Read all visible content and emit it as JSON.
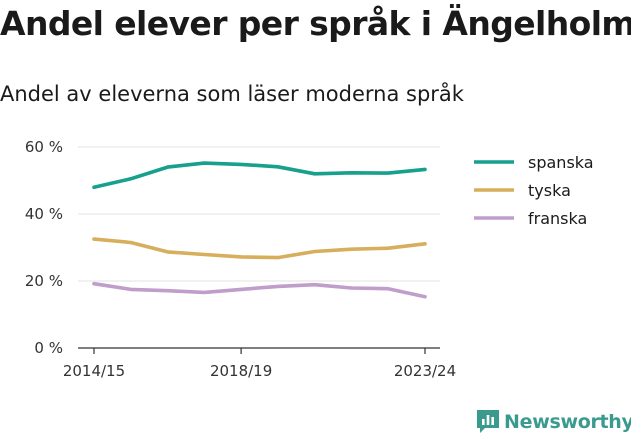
{
  "title": "Andel elever per språk i Ängelholm",
  "subtitle": "Andel av eleverna som läser moderna språk",
  "brand": {
    "name": "Newsworthy",
    "color": "#3a9a8e",
    "icon": "bar-chart-logo-icon"
  },
  "chart_data": {
    "type": "line",
    "x": [
      0,
      1,
      2,
      3,
      4,
      5,
      6,
      7,
      8,
      9
    ],
    "x_tick_positions": [
      0,
      4,
      9
    ],
    "x_tick_labels": [
      "2014/15",
      "2018/19",
      "2023/24"
    ],
    "y_ticks": [
      0,
      20,
      40,
      60
    ],
    "y_tick_labels": [
      "0 %",
      "20 %",
      "40 %",
      "60 %"
    ],
    "ylim": [
      0,
      60
    ],
    "grid": true,
    "legend_position": "right",
    "series": [
      {
        "name": "spanska",
        "color": "#16a08d",
        "values": [
          48,
          50.5,
          54,
          55.2,
          54.8,
          54.1,
          52,
          52.3,
          52.2,
          53.3
        ]
      },
      {
        "name": "tyska",
        "color": "#d6ae5c",
        "values": [
          32.5,
          31.5,
          28.7,
          27.9,
          27.2,
          27,
          28.8,
          29.5,
          29.8,
          31.1
        ]
      },
      {
        "name": "franska",
        "color": "#c09dcb",
        "values": [
          19.2,
          17.5,
          17.1,
          16.6,
          17.5,
          18.4,
          18.9,
          17.9,
          17.7,
          15.3
        ]
      }
    ]
  }
}
